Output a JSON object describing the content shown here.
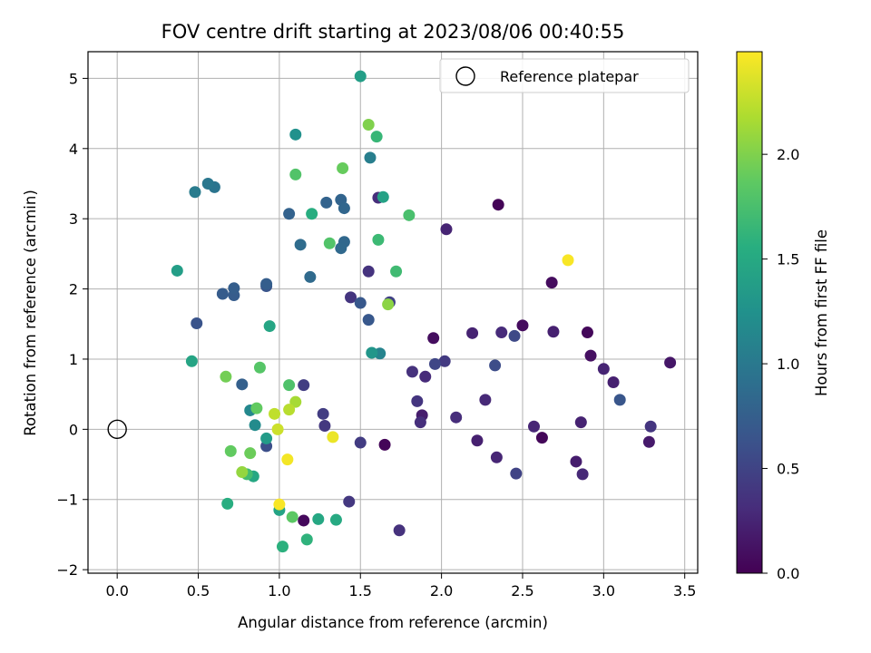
{
  "chart_data": {
    "type": "scatter",
    "title": "FOV centre drift starting at 2023/08/06 00:40:55",
    "xlabel": "Angular distance from reference (arcmin)",
    "ylabel": "Rotation from reference (arcmin)",
    "xlim": [
      -0.18,
      3.58
    ],
    "ylim": [
      -2.05,
      5.38
    ],
    "xticks": [
      0.0,
      0.5,
      1.0,
      1.5,
      2.0,
      2.5,
      3.0,
      3.5
    ],
    "xtick_labels": [
      "0.0",
      "0.5",
      "1.0",
      "1.5",
      "2.0",
      "2.5",
      "3.0",
      "3.5"
    ],
    "yticks": [
      -2,
      -1,
      0,
      1,
      2,
      3,
      4,
      5
    ],
    "ytick_labels": [
      "−2",
      "−1",
      "0",
      "1",
      "2",
      "3",
      "4",
      "5"
    ],
    "grid": true,
    "legend": {
      "position": "top-right",
      "entries": [
        "Reference platepar"
      ]
    },
    "reference_point": {
      "x": 0,
      "y": 0
    },
    "colorbar": {
      "label": "Hours from first FF file",
      "colormap": "viridis",
      "range": [
        0,
        2.49
      ],
      "ticks": [
        0.0,
        0.5,
        1.0,
        1.5,
        2.0
      ],
      "tick_labels": [
        "0.0",
        "0.5",
        "1.0",
        "1.5",
        "2.0"
      ]
    },
    "points": [
      {
        "x": 2.35,
        "y": 3.2,
        "c": 0.02
      },
      {
        "x": 1.65,
        "y": -0.22,
        "c": 0.03
      },
      {
        "x": 2.62,
        "y": -0.12,
        "c": 0.04
      },
      {
        "x": 2.9,
        "y": 1.38,
        "c": 0.05
      },
      {
        "x": 1.15,
        "y": -1.3,
        "c": 0.06
      },
      {
        "x": 2.5,
        "y": 1.48,
        "c": 0.08
      },
      {
        "x": 2.68,
        "y": 2.09,
        "c": 0.08
      },
      {
        "x": 1.95,
        "y": 1.3,
        "c": 0.09
      },
      {
        "x": 2.92,
        "y": 1.05,
        "c": 0.1
      },
      {
        "x": 3.41,
        "y": 0.95,
        "c": 0.15
      },
      {
        "x": 3.28,
        "y": -0.18,
        "c": 0.18
      },
      {
        "x": 2.83,
        "y": -0.46,
        "c": 0.2
      },
      {
        "x": 1.88,
        "y": 0.2,
        "c": 0.2
      },
      {
        "x": 2.69,
        "y": 1.39,
        "c": 0.22
      },
      {
        "x": 2.22,
        "y": -0.16,
        "c": 0.22
      },
      {
        "x": 3.06,
        "y": 0.67,
        "c": 0.22
      },
      {
        "x": 2.86,
        "y": 0.1,
        "c": 0.24
      },
      {
        "x": 2.19,
        "y": 1.37,
        "c": 0.24
      },
      {
        "x": 2.03,
        "y": 2.85,
        "c": 0.25
      },
      {
        "x": 3.0,
        "y": 0.86,
        "c": 0.25
      },
      {
        "x": 2.57,
        "y": 0.04,
        "c": 0.26
      },
      {
        "x": 2.34,
        "y": -0.4,
        "c": 0.26
      },
      {
        "x": 2.87,
        "y": -0.64,
        "c": 0.28
      },
      {
        "x": 2.27,
        "y": 0.42,
        "c": 0.28
      },
      {
        "x": 2.37,
        "y": 1.38,
        "c": 0.3
      },
      {
        "x": 1.9,
        "y": 0.75,
        "c": 0.3
      },
      {
        "x": 1.61,
        "y": 3.3,
        "c": 0.32
      },
      {
        "x": 2.09,
        "y": 0.17,
        "c": 0.32
      },
      {
        "x": 1.87,
        "y": 0.1,
        "c": 0.33
      },
      {
        "x": 1.82,
        "y": 0.82,
        "c": 0.35
      },
      {
        "x": 1.74,
        "y": -1.44,
        "c": 0.35
      },
      {
        "x": 1.55,
        "y": 2.25,
        "c": 0.36
      },
      {
        "x": 1.44,
        "y": 1.88,
        "c": 0.38
      },
      {
        "x": 1.85,
        "y": 0.4,
        "c": 0.38
      },
      {
        "x": 3.29,
        "y": 0.04,
        "c": 0.38
      },
      {
        "x": 1.28,
        "y": 0.05,
        "c": 0.4
      },
      {
        "x": 1.43,
        "y": -1.03,
        "c": 0.4
      },
      {
        "x": 2.02,
        "y": 0.97,
        "c": 0.42
      },
      {
        "x": 1.5,
        "y": -0.19,
        "c": 0.44
      },
      {
        "x": 1.15,
        "y": 0.63,
        "c": 0.45
      },
      {
        "x": 1.27,
        "y": 0.22,
        "c": 0.45
      },
      {
        "x": 1.68,
        "y": 1.81,
        "c": 0.48
      },
      {
        "x": 2.46,
        "y": -0.63,
        "c": 0.5
      },
      {
        "x": 1.96,
        "y": 0.93,
        "c": 0.52
      },
      {
        "x": 2.45,
        "y": 1.33,
        "c": 0.55
      },
      {
        "x": 2.33,
        "y": 0.91,
        "c": 0.58
      },
      {
        "x": 0.92,
        "y": -0.24,
        "c": 0.6
      },
      {
        "x": 0.49,
        "y": 1.51,
        "c": 0.64
      },
      {
        "x": 0.92,
        "y": 2.04,
        "c": 0.65
      },
      {
        "x": 3.1,
        "y": 0.42,
        "c": 0.66
      },
      {
        "x": 1.5,
        "y": 1.8,
        "c": 0.68
      },
      {
        "x": 1.55,
        "y": 1.56,
        "c": 0.68
      },
      {
        "x": 0.72,
        "y": 1.91,
        "c": 0.72
      },
      {
        "x": 0.65,
        "y": 1.93,
        "c": 0.72
      },
      {
        "x": 0.72,
        "y": 2.01,
        "c": 0.74
      },
      {
        "x": 0.92,
        "y": 2.07,
        "c": 0.74
      },
      {
        "x": 0.77,
        "y": 0.64,
        "c": 0.76
      },
      {
        "x": 1.06,
        "y": 3.07,
        "c": 0.78
      },
      {
        "x": 1.29,
        "y": 3.23,
        "c": 0.79
      },
      {
        "x": 1.38,
        "y": 3.27,
        "c": 0.8
      },
      {
        "x": 1.4,
        "y": 3.15,
        "c": 0.82
      },
      {
        "x": 1.4,
        "y": 2.67,
        "c": 0.84
      },
      {
        "x": 1.38,
        "y": 2.58,
        "c": 0.85
      },
      {
        "x": 1.19,
        "y": 2.17,
        "c": 0.86
      },
      {
        "x": 1.13,
        "y": 2.63,
        "c": 0.88
      },
      {
        "x": 0.6,
        "y": 3.45,
        "c": 0.95
      },
      {
        "x": 0.56,
        "y": 3.5,
        "c": 0.98
      },
      {
        "x": 0.48,
        "y": 3.38,
        "c": 1.02
      },
      {
        "x": 1.56,
        "y": 3.87,
        "c": 1.05
      },
      {
        "x": 1.62,
        "y": 1.08,
        "c": 1.1
      },
      {
        "x": 0.82,
        "y": 0.27,
        "c": 1.15
      },
      {
        "x": 0.85,
        "y": 0.06,
        "c": 1.18
      },
      {
        "x": 1.1,
        "y": 4.2,
        "c": 1.25
      },
      {
        "x": 1.57,
        "y": 1.09,
        "c": 1.3
      },
      {
        "x": 0.92,
        "y": -0.13,
        "c": 1.35
      },
      {
        "x": 0.37,
        "y": 2.26,
        "c": 1.38
      },
      {
        "x": 1.5,
        "y": 5.03,
        "c": 1.38
      },
      {
        "x": 1.64,
        "y": 3.31,
        "c": 1.42
      },
      {
        "x": 1.0,
        "y": -1.15,
        "c": 1.44
      },
      {
        "x": 0.46,
        "y": 0.97,
        "c": 1.45
      },
      {
        "x": 0.94,
        "y": 1.47,
        "c": 1.46
      },
      {
        "x": 0.84,
        "y": -0.67,
        "c": 1.48
      },
      {
        "x": 1.24,
        "y": -1.28,
        "c": 1.48
      },
      {
        "x": 1.35,
        "y": -1.29,
        "c": 1.5
      },
      {
        "x": 1.2,
        "y": 3.07,
        "c": 1.55
      },
      {
        "x": 0.68,
        "y": -1.06,
        "c": 1.55
      },
      {
        "x": 1.02,
        "y": -1.67,
        "c": 1.58
      },
      {
        "x": 1.17,
        "y": -1.57,
        "c": 1.6
      },
      {
        "x": 1.6,
        "y": 4.17,
        "c": 1.65
      },
      {
        "x": 1.61,
        "y": 2.7,
        "c": 1.68
      },
      {
        "x": 1.72,
        "y": 2.25,
        "c": 1.7
      },
      {
        "x": 0.8,
        "y": -0.64,
        "c": 1.72
      },
      {
        "x": 1.8,
        "y": 3.05,
        "c": 1.75
      },
      {
        "x": 1.06,
        "y": 0.63,
        "c": 1.78
      },
      {
        "x": 1.31,
        "y": 2.65,
        "c": 1.8
      },
      {
        "x": 1.1,
        "y": 3.63,
        "c": 1.8
      },
      {
        "x": 0.88,
        "y": 0.88,
        "c": 1.82
      },
      {
        "x": 1.08,
        "y": -1.25,
        "c": 1.85
      },
      {
        "x": 0.7,
        "y": -0.31,
        "c": 1.88
      },
      {
        "x": 0.86,
        "y": 0.3,
        "c": 1.88
      },
      {
        "x": 1.39,
        "y": 3.72,
        "c": 1.9
      },
      {
        "x": 0.82,
        "y": -0.34,
        "c": 1.92
      },
      {
        "x": 0.67,
        "y": 0.75,
        "c": 1.95
      },
      {
        "x": 1.55,
        "y": 4.34,
        "c": 2.0
      },
      {
        "x": 1.67,
        "y": 1.78,
        "c": 2.05
      },
      {
        "x": 0.77,
        "y": -0.61,
        "c": 2.08
      },
      {
        "x": 1.1,
        "y": 0.39,
        "c": 2.15
      },
      {
        "x": 1.06,
        "y": 0.28,
        "c": 2.22
      },
      {
        "x": 0.97,
        "y": 0.22,
        "c": 2.25
      },
      {
        "x": 0.99,
        "y": 0.0,
        "c": 2.3
      },
      {
        "x": 1.33,
        "y": -0.11,
        "c": 2.42
      },
      {
        "x": 1.05,
        "y": -0.43,
        "c": 2.45
      },
      {
        "x": 2.78,
        "y": 2.41,
        "c": 2.47
      },
      {
        "x": 1.0,
        "y": -1.07,
        "c": 2.47
      }
    ]
  }
}
